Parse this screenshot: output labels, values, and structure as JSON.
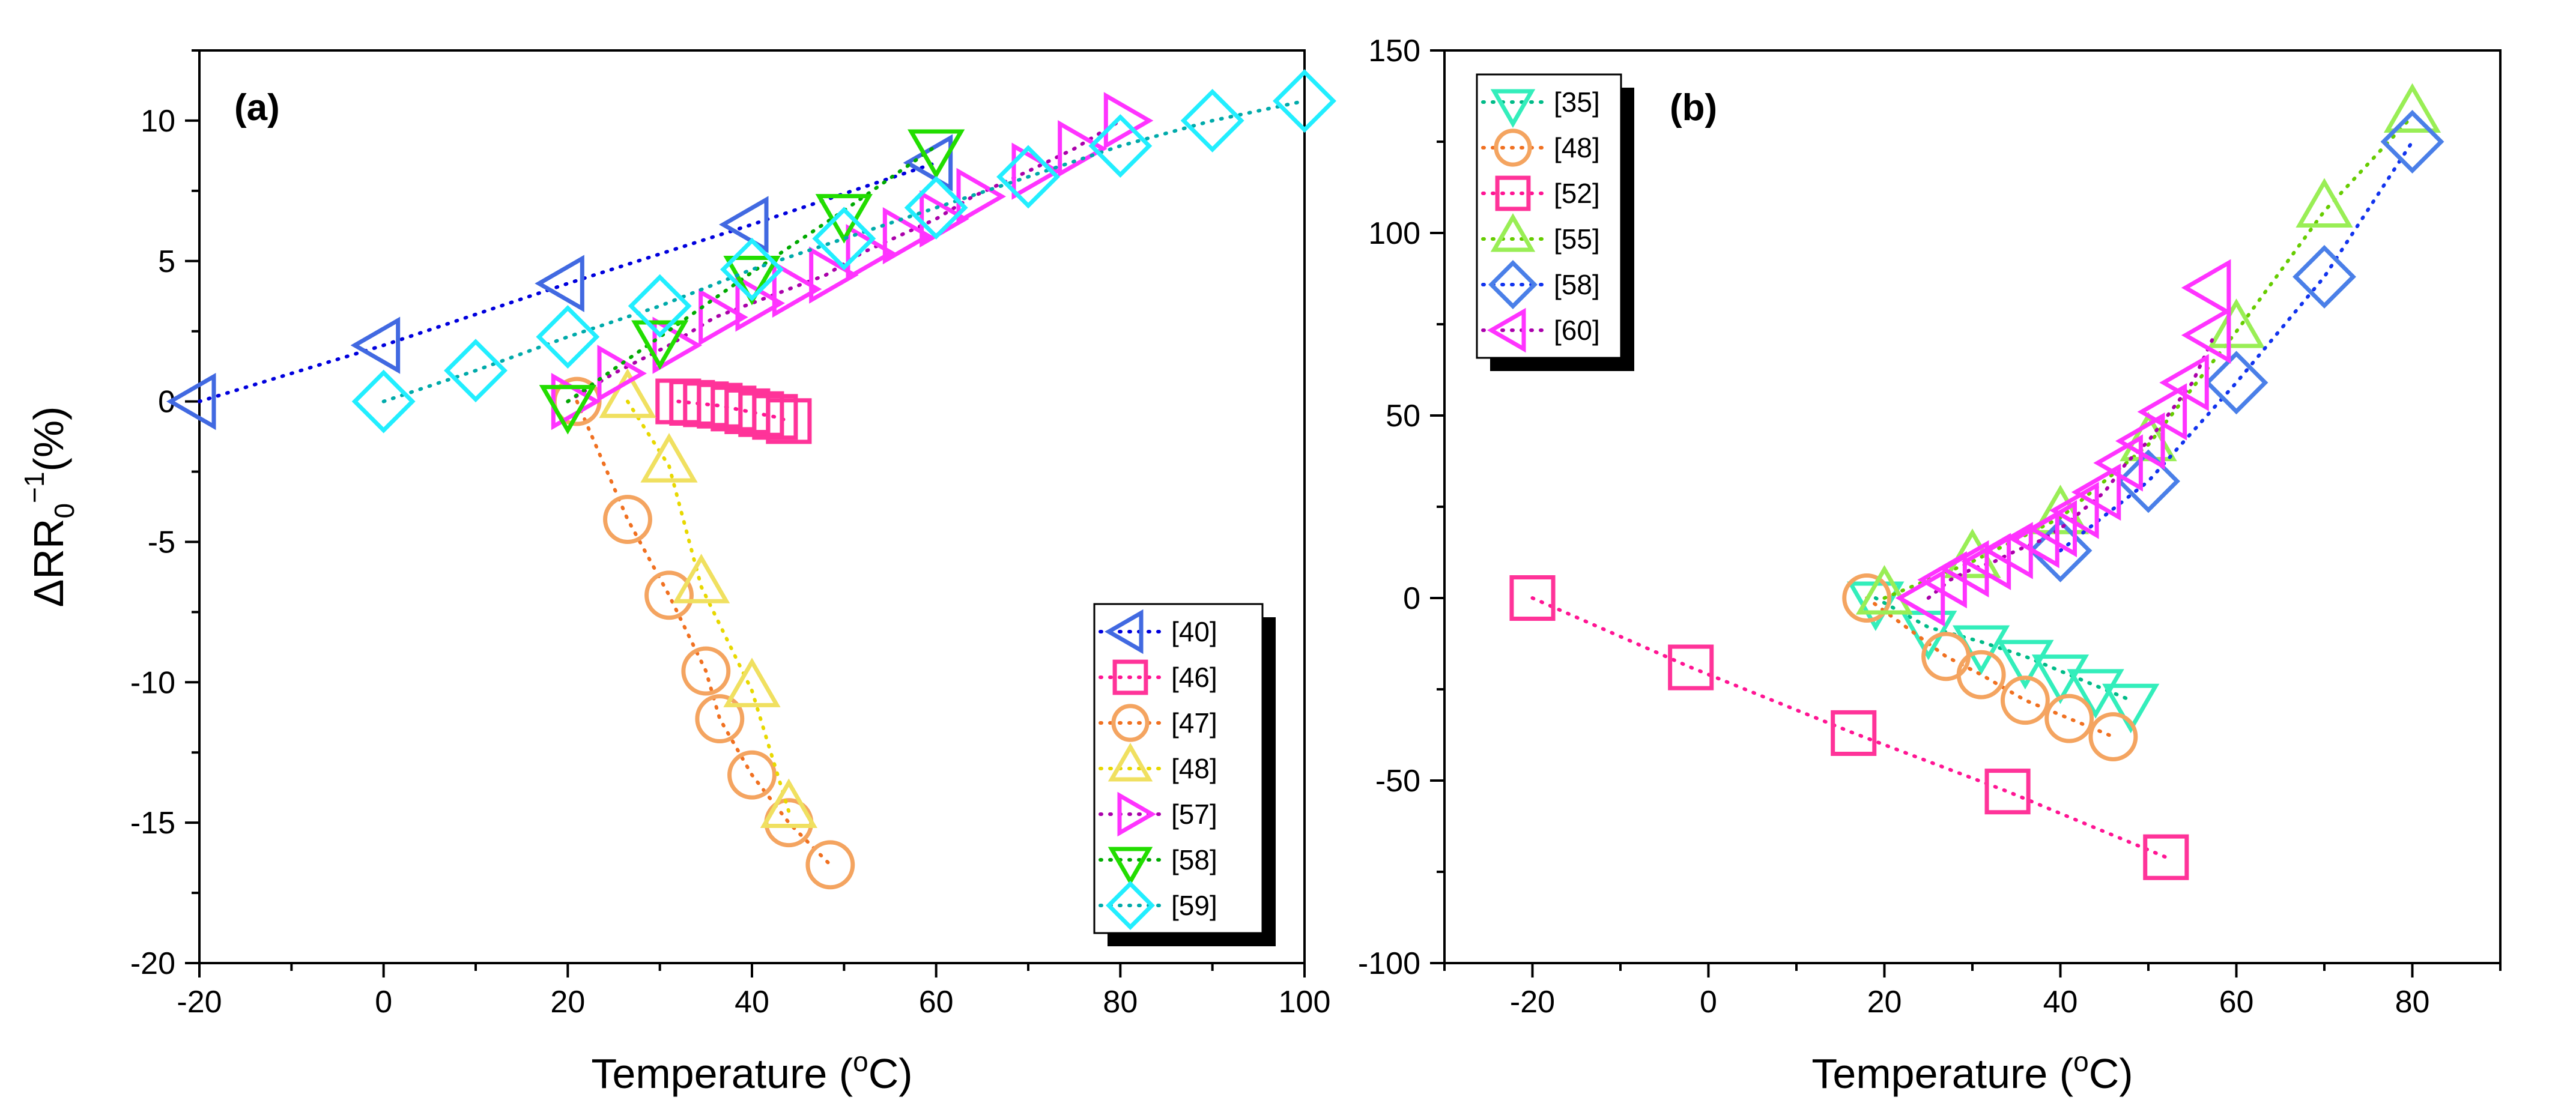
{
  "chart_data": [
    {
      "panel_label": "(a)",
      "type": "scatter",
      "line_style": "dotted",
      "xlabel": "Temperature (oC)",
      "ylabel": "ΔRR0-1(%)",
      "xlim": [
        -20,
        100
      ],
      "ylim": [
        -20,
        12.5
      ],
      "x_ticks": [
        -20,
        0,
        20,
        40,
        60,
        80,
        100
      ],
      "y_ticks": [
        -20,
        -15,
        -10,
        -5,
        0,
        5,
        10
      ],
      "legend_position": "bottom-right",
      "grid": false,
      "series": [
        {
          "name": "[40]",
          "marker": "triangle-left",
          "color": "#4169E1",
          "line_color": "#0000DD",
          "x": [
            -20,
            0,
            20,
            40,
            60
          ],
          "y": [
            0,
            2,
            4.2,
            6.3,
            8.5
          ]
        },
        {
          "name": "[46]",
          "marker": "square",
          "color": "#FF3399",
          "line_color": "#FF1493",
          "x": [
            32,
            33.5,
            35,
            36.5,
            38,
            39.5,
            41,
            42.5,
            44
          ],
          "y": [
            0,
            -0.05,
            -0.1,
            -0.15,
            -0.25,
            -0.35,
            -0.45,
            -0.55,
            -0.7
          ]
        },
        {
          "name": "[47]",
          "marker": "circle",
          "color": "#F4A460",
          "line_color": "#F07020",
          "x": [
            21,
            26.5,
            31,
            35,
            36.5,
            40,
            44,
            48.5
          ],
          "y": [
            0,
            -4.2,
            -6.9,
            -9.6,
            -11.3,
            -13.3,
            -15,
            -16.5
          ]
        },
        {
          "name": "[48]",
          "marker": "triangle-up",
          "color": "#F0E060",
          "line_color": "#E8D800",
          "x": [
            26.5,
            31,
            34.5,
            40,
            44
          ],
          "y": [
            0,
            -2.3,
            -6.6,
            -10.3,
            -14.6
          ]
        },
        {
          "name": "[57]",
          "marker": "triangle-right",
          "color": "#FF33FF",
          "line_color": "#AA00AA",
          "x": [
            20,
            25,
            31,
            36,
            40,
            44,
            48,
            52,
            56,
            60,
            64,
            70,
            75,
            80
          ],
          "y": [
            0,
            1,
            2,
            3,
            3.5,
            4,
            4.5,
            5.3,
            5.9,
            6.5,
            7.3,
            8.2,
            9,
            10
          ]
        },
        {
          "name": "[58]",
          "marker": "triangle-down",
          "color": "#22DD00",
          "line_color": "#00AA00",
          "x": [
            20,
            30,
            40,
            50,
            60
          ],
          "y": [
            0,
            2.3,
            4.6,
            6.8,
            9.1
          ]
        },
        {
          "name": "[59]",
          "marker": "diamond",
          "color": "#22EEFF",
          "line_color": "#00AAAA",
          "x": [
            0,
            10,
            20,
            30,
            40,
            50,
            60,
            70,
            80,
            90,
            100
          ],
          "y": [
            0,
            1.1,
            2.3,
            3.4,
            4.7,
            5.8,
            6.9,
            8,
            9.1,
            10,
            10.7
          ]
        }
      ]
    },
    {
      "panel_label": "(b)",
      "type": "scatter",
      "line_style": "dotted",
      "xlabel": "Temperature (oC)",
      "ylabel": "",
      "xlim": [
        -30,
        90
      ],
      "ylim": [
        -100,
        150
      ],
      "x_ticks": [
        -20,
        0,
        20,
        40,
        60,
        80
      ],
      "y_ticks": [
        -100,
        -50,
        0,
        50,
        100,
        150
      ],
      "legend_position": "top-left",
      "grid": false,
      "series": [
        {
          "name": "[35]",
          "marker": "triangle-down",
          "color": "#33EEBB",
          "line_color": "#00BB88",
          "x": [
            19,
            25,
            31,
            36,
            40,
            44,
            48
          ],
          "y": [
            0,
            -8,
            -12,
            -16,
            -20,
            -24,
            -28
          ]
        },
        {
          "name": "[48]",
          "marker": "circle",
          "color": "#F4A460",
          "line_color": "#F07020",
          "x": [
            18,
            27,
            31,
            36,
            41,
            46
          ],
          "y": [
            0,
            -16,
            -21,
            -28,
            -33,
            -38
          ]
        },
        {
          "name": "[52]",
          "marker": "square",
          "color": "#FF3399",
          "line_color": "#FF1493",
          "x": [
            -20,
            -2,
            16.5,
            34,
            52
          ],
          "y": [
            0,
            -19,
            -37,
            -53,
            -71
          ]
        },
        {
          "name": "[55]",
          "marker": "triangle-up",
          "color": "#99EE55",
          "line_color": "#66CC00",
          "x": [
            20,
            30,
            40,
            50,
            60,
            70,
            80
          ],
          "y": [
            0,
            10,
            22,
            42,
            73,
            106,
            132
          ]
        },
        {
          "name": "[58]",
          "marker": "diamond",
          "color": "#4A7FE8",
          "line_color": "#1133EE",
          "x": [
            40,
            50,
            60,
            70,
            80
          ],
          "y": [
            13,
            32,
            59,
            88,
            125
          ]
        },
        {
          "name": "[60]",
          "marker": "triangle-left",
          "color": "#FF33FF",
          "line_color": "#AA00AA",
          "x": [
            25,
            27.5,
            30,
            32.5,
            35,
            38,
            40,
            42.5,
            45,
            47.5,
            50,
            52.5,
            55,
            57.5
          ],
          "y": [
            0,
            5,
            8,
            10,
            13,
            16,
            19,
            24,
            29,
            37,
            43,
            51,
            59,
            72
          ]
        },
        {
          "name": "[60]",
          "marker": "triangle-left",
          "color": "#FF33FF",
          "line_color": "#AA00AA",
          "legend_hidden": true,
          "x": [
            57.5
          ],
          "y": [
            85
          ]
        }
      ]
    }
  ]
}
